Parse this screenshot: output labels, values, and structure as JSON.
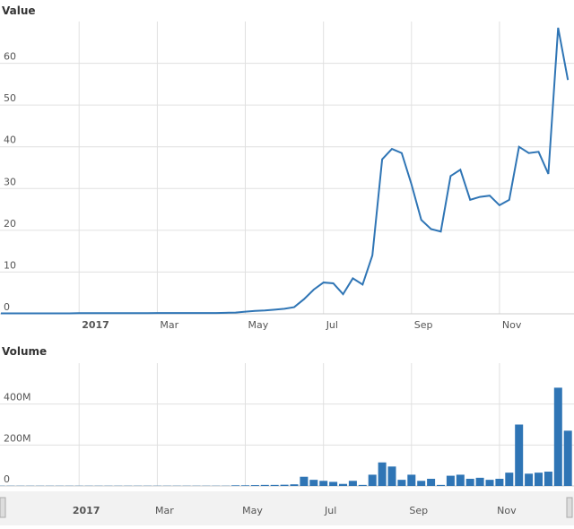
{
  "chart_data": [
    {
      "type": "line",
      "title": "Value",
      "categories": [
        null,
        null,
        null,
        null,
        null,
        null,
        null,
        null,
        "2017",
        null,
        null,
        null,
        null,
        null,
        null,
        null,
        "Mar",
        null,
        null,
        null,
        null,
        null,
        null,
        null,
        null,
        "May",
        null,
        null,
        null,
        null,
        null,
        null,
        null,
        "Jul",
        null,
        null,
        null,
        null,
        null,
        null,
        null,
        null,
        "Sep",
        null,
        null,
        null,
        null,
        null,
        null,
        null,
        null,
        "Nov",
        null,
        null,
        null,
        null,
        null,
        null,
        null
      ],
      "series": [
        {
          "name": "Value",
          "color": "#2f75b5",
          "values": [
            0.1,
            0.1,
            0.1,
            0.1,
            0.1,
            0.1,
            0.1,
            0.1,
            0.15,
            0.15,
            0.15,
            0.15,
            0.15,
            0.15,
            0.15,
            0.15,
            0.2,
            0.2,
            0.2,
            0.2,
            0.2,
            0.2,
            0.2,
            0.25,
            0.3,
            0.5,
            0.7,
            0.8,
            1,
            1.2,
            1.6,
            3.5,
            5.8,
            7.5,
            7.3,
            4.7,
            8.5,
            7,
            14,
            37,
            39.5,
            38.5,
            31,
            22.5,
            20.3,
            19.7,
            33,
            34.5,
            27.3,
            28,
            28.3,
            26,
            27.3,
            40,
            38.5,
            38.8,
            33.5,
            68.5,
            56
          ]
        }
      ],
      "ylim": [
        0,
        70
      ],
      "yticks": [
        0,
        10,
        20,
        30,
        40,
        50,
        60
      ],
      "grid": true
    },
    {
      "type": "bar",
      "title": "Volume",
      "categories": [
        null,
        null,
        null,
        null,
        null,
        null,
        null,
        null,
        "2017",
        null,
        null,
        null,
        null,
        null,
        null,
        null,
        "Mar",
        null,
        null,
        null,
        null,
        null,
        null,
        null,
        null,
        "May",
        null,
        null,
        null,
        null,
        null,
        null,
        null,
        "Jul",
        null,
        null,
        null,
        null,
        null,
        null,
        null,
        null,
        "Sep",
        null,
        null,
        null,
        null,
        null,
        null,
        null,
        null,
        "Nov",
        null,
        null,
        null,
        null,
        null,
        null,
        null
      ],
      "series": [
        {
          "name": "Volume",
          "color": "#2f75b5",
          "values": [
            1000000,
            1000000,
            1000000,
            1000000,
            1000000,
            1000000,
            1000000,
            1000000,
            1000000,
            1000000,
            1000000,
            1000000,
            1000000,
            1000000,
            1000000,
            1000000,
            1000000,
            1000000,
            1000000,
            1000000,
            1000000,
            1000000,
            1000000,
            1000000,
            3000000,
            3000000,
            4000000,
            5000000,
            5000000,
            6000000,
            8000000,
            45000000,
            30000000,
            25000000,
            20000000,
            10000000,
            25000000,
            5000000,
            55000000,
            115000000,
            95000000,
            30000000,
            55000000,
            25000000,
            35000000,
            5000000,
            50000000,
            55000000,
            35000000,
            40000000,
            30000000,
            35000000,
            65000000,
            300000000,
            60000000,
            65000000,
            70000000,
            480000000,
            270000000
          ]
        }
      ],
      "ylim": [
        0,
        600000000
      ],
      "yticks": [
        0,
        {
          "value": 200000000,
          "label": "200M"
        },
        {
          "value": 400000000,
          "label": "400M"
        }
      ],
      "grid": true
    }
  ]
}
